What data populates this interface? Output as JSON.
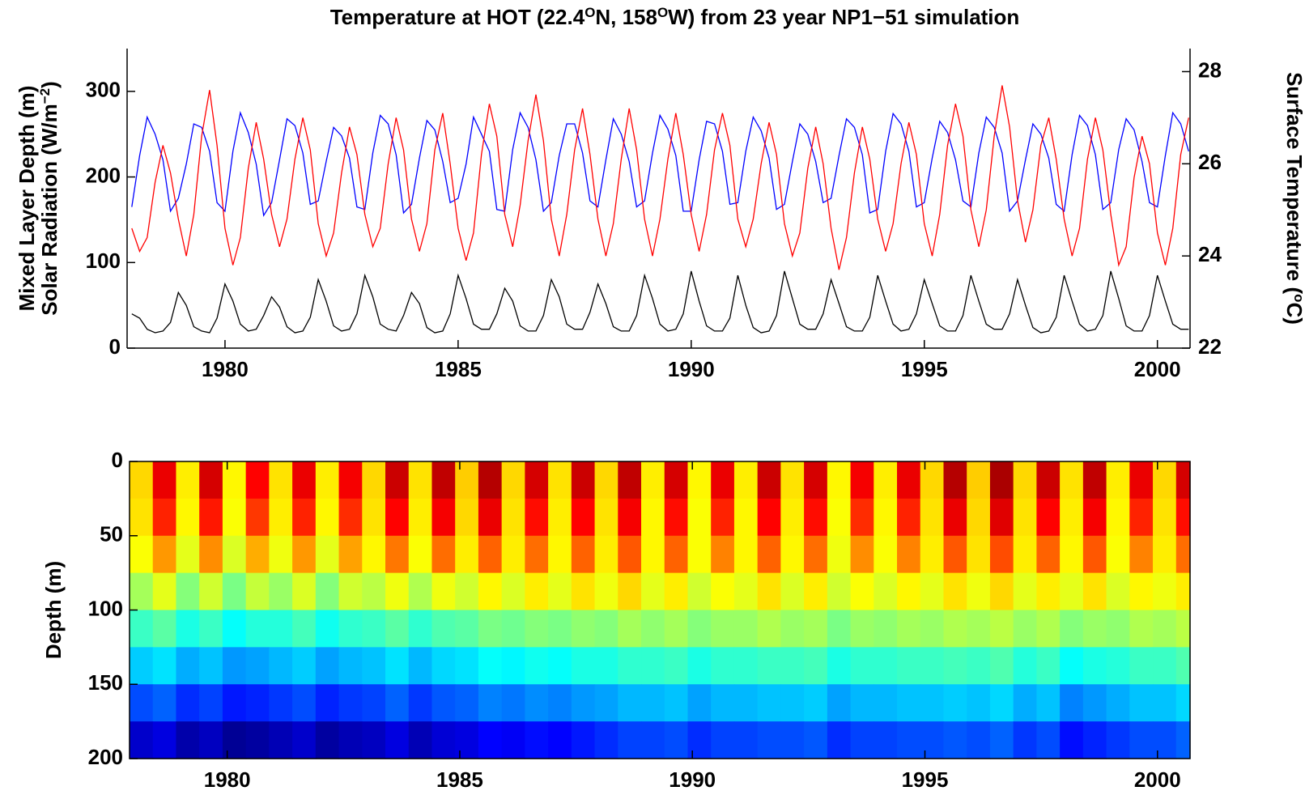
{
  "chart_data": [
    {
      "type": "line",
      "title": [
        "Temperature at HOT (22.4",
        "O",
        "N, 158",
        "O",
        "W) from 23 year NP1−51 simulation"
      ],
      "ylabel": [
        [
          "Mixed Layer Depth (m)"
        ],
        [
          "Solar Radiation (W/m",
          "−2",
          ")"
        ]
      ],
      "y2label": [
        "Surface Temperature (",
        "o",
        "C)"
      ],
      "xlim": [
        1977.9,
        2000.7
      ],
      "xticks": [
        1980,
        1985,
        1990,
        1995,
        2000
      ],
      "ylim": [
        0,
        350
      ],
      "yticks": [
        0,
        100,
        200,
        300
      ],
      "y2lim": [
        22,
        28.5
      ],
      "y2ticks": [
        22,
        24,
        26,
        28
      ],
      "x": [
        1978,
        1978.17,
        1978.33,
        1978.5,
        1978.67,
        1978.83,
        1979,
        1979.17,
        1979.33,
        1979.5,
        1979.67,
        1979.83,
        1980,
        1980.17,
        1980.33,
        1980.5,
        1980.67,
        1980.83,
        1981,
        1981.17,
        1981.33,
        1981.5,
        1981.67,
        1981.83,
        1982,
        1982.17,
        1982.33,
        1982.5,
        1982.67,
        1982.83,
        1983,
        1983.17,
        1983.33,
        1983.5,
        1983.67,
        1983.83,
        1984,
        1984.17,
        1984.33,
        1984.5,
        1984.67,
        1984.83,
        1985,
        1985.17,
        1985.33,
        1985.5,
        1985.67,
        1985.83,
        1986,
        1986.17,
        1986.33,
        1986.5,
        1986.67,
        1986.83,
        1987,
        1987.17,
        1987.33,
        1987.5,
        1987.67,
        1987.83,
        1988,
        1988.17,
        1988.33,
        1988.5,
        1988.67,
        1988.83,
        1989,
        1989.17,
        1989.33,
        1989.5,
        1989.67,
        1989.83,
        1990,
        1990.17,
        1990.33,
        1990.5,
        1990.67,
        1990.83,
        1991,
        1991.17,
        1991.33,
        1991.5,
        1991.67,
        1991.83,
        1992,
        1992.17,
        1992.33,
        1992.5,
        1992.67,
        1992.83,
        1993,
        1993.17,
        1993.33,
        1993.5,
        1993.67,
        1993.83,
        1994,
        1994.17,
        1994.33,
        1994.5,
        1994.67,
        1994.83,
        1995,
        1995.17,
        1995.33,
        1995.5,
        1995.67,
        1995.83,
        1996,
        1996.17,
        1996.33,
        1996.5,
        1996.67,
        1996.83,
        1997,
        1997.17,
        1997.33,
        1997.5,
        1997.67,
        1997.83,
        1998,
        1998.17,
        1998.33,
        1998.5,
        1998.67,
        1998.83,
        1999,
        1999.17,
        1999.33,
        1999.5,
        1999.67,
        1999.83,
        2000,
        2000.17,
        2000.33,
        2000.5,
        2000.67
      ],
      "series": [
        {
          "color": "#0000ff",
          "values": [
            165,
            225,
            270,
            250,
            220,
            160,
            175,
            215,
            262,
            258,
            230,
            170,
            160,
            230,
            275,
            252,
            215,
            155,
            170,
            220,
            268,
            260,
            228,
            168,
            172,
            218,
            258,
            248,
            222,
            165,
            162,
            228,
            272,
            262,
            226,
            158,
            168,
            222,
            266,
            255,
            218,
            170,
            175,
            215,
            270,
            250,
            230,
            162,
            160,
            232,
            275,
            258,
            220,
            160,
            170,
            225,
            262,
            262,
            228,
            172,
            165,
            220,
            268,
            250,
            218,
            165,
            172,
            228,
            272,
            256,
            225,
            160,
            160,
            220,
            265,
            262,
            230,
            168,
            170,
            230,
            270,
            254,
            222,
            162,
            168,
            218,
            262,
            250,
            218,
            170,
            175,
            225,
            268,
            258,
            226,
            158,
            162,
            230,
            274,
            262,
            230,
            165,
            170,
            222,
            265,
            252,
            220,
            172,
            165,
            228,
            270,
            258,
            228,
            160,
            172,
            220,
            262,
            250,
            222,
            168,
            160,
            226,
            272,
            260,
            226,
            162,
            170,
            232,
            268,
            255,
            218,
            170,
            165,
            225,
            275,
            262,
            230
          ]
        },
        {
          "color": "#000000",
          "values": [
            40,
            35,
            22,
            18,
            20,
            30,
            65,
            50,
            25,
            20,
            18,
            35,
            75,
            55,
            28,
            20,
            22,
            38,
            60,
            48,
            25,
            18,
            20,
            36,
            80,
            55,
            26,
            20,
            22,
            40,
            85,
            60,
            28,
            22,
            20,
            38,
            65,
            52,
            24,
            18,
            20,
            40,
            85,
            58,
            28,
            22,
            22,
            40,
            70,
            55,
            26,
            20,
            20,
            38,
            80,
            60,
            28,
            22,
            22,
            42,
            75,
            52,
            25,
            20,
            20,
            38,
            85,
            58,
            28,
            20,
            22,
            40,
            90,
            55,
            26,
            20,
            20,
            35,
            85,
            50,
            24,
            18,
            20,
            38,
            90,
            58,
            28,
            22,
            22,
            40,
            80,
            52,
            25,
            20,
            20,
            36,
            85,
            55,
            28,
            20,
            22,
            40,
            80,
            52,
            26,
            20,
            20,
            38,
            85,
            55,
            28,
            22,
            22,
            40,
            80,
            50,
            24,
            18,
            20,
            36,
            85,
            55,
            28,
            20,
            22,
            38,
            90,
            58,
            26,
            20,
            20,
            38,
            85,
            55,
            28,
            22,
            22
          ]
        },
        {
          "color": "#ff0000",
          "axis": "y2",
          "values": [
            24.6,
            24.1,
            24.4,
            25.6,
            26.4,
            25.8,
            24.8,
            24.0,
            24.9,
            26.6,
            27.6,
            26.4,
            24.6,
            23.8,
            24.4,
            25.9,
            26.9,
            26.1,
            24.9,
            24.2,
            24.8,
            26.1,
            27.0,
            26.3,
            24.7,
            24.0,
            24.5,
            25.8,
            26.8,
            26.2,
            24.9,
            24.2,
            24.6,
            26.0,
            27.0,
            26.3,
            24.8,
            24.1,
            24.7,
            26.3,
            27.1,
            26.0,
            24.6,
            23.9,
            24.5,
            26.2,
            27.3,
            26.6,
            24.9,
            24.2,
            25.1,
            26.5,
            27.5,
            26.5,
            24.8,
            24.0,
            24.9,
            26.3,
            27.2,
            26.2,
            24.8,
            24.0,
            24.7,
            26.1,
            27.2,
            26.3,
            24.8,
            24.0,
            24.8,
            26.1,
            27.1,
            26.2,
            24.9,
            24.1,
            24.9,
            26.3,
            27.1,
            26.4,
            24.8,
            24.2,
            24.8,
            26.0,
            26.9,
            26.2,
            24.7,
            24.0,
            24.5,
            25.9,
            26.8,
            26.0,
            24.6,
            23.7,
            24.4,
            25.8,
            26.8,
            26.1,
            24.8,
            24.1,
            24.7,
            26.0,
            26.9,
            26.2,
            24.7,
            24.0,
            24.9,
            26.4,
            27.3,
            26.6,
            25.0,
            24.2,
            25.0,
            26.6,
            27.7,
            26.8,
            25.2,
            24.3,
            25.0,
            26.4,
            27.0,
            26.1,
            24.8,
            24.0,
            24.6,
            26.1,
            27.0,
            26.3,
            24.9,
            23.8,
            24.2,
            25.7,
            26.6,
            26.0,
            24.5,
            23.8,
            24.6,
            26.2,
            27.0
          ]
        }
      ]
    },
    {
      "type": "contour",
      "ylabel": "Depth (m)",
      "xlim": [
        1977.9,
        2000.7
      ],
      "xticks": [
        1980,
        1985,
        1990,
        1995,
        2000
      ],
      "ylim": [
        0,
        200
      ],
      "yticks": [
        0,
        50,
        100,
        150,
        200
      ],
      "yreverse": true,
      "colormap": "jet",
      "zlim": [
        18.5,
        28
      ],
      "x_edges": [
        1977.9,
        1978.4,
        1978.9,
        1979.4,
        1979.9,
        1980.4,
        1980.9,
        1981.4,
        1981.9,
        1982.4,
        1982.9,
        1983.4,
        1983.9,
        1984.4,
        1984.9,
        1985.4,
        1985.9,
        1986.4,
        1986.9,
        1987.4,
        1987.9,
        1988.4,
        1988.9,
        1989.4,
        1989.9,
        1990.4,
        1990.9,
        1991.4,
        1991.9,
        1992.4,
        1992.9,
        1993.4,
        1993.9,
        1994.4,
        1994.9,
        1995.4,
        1995.9,
        1996.4,
        1996.9,
        1997.4,
        1997.9,
        1998.4,
        1998.9,
        1999.4,
        1999.9,
        2000.4,
        2000.7
      ],
      "y_edges": [
        0,
        25,
        50,
        75,
        100,
        125,
        150,
        175,
        200
      ],
      "z": [
        [
          24.8,
          27.0,
          24.6,
          27.2,
          24.5,
          26.8,
          24.7,
          27.0,
          24.6,
          26.9,
          24.8,
          27.3,
          24.7,
          27.4,
          24.9,
          27.5,
          24.8,
          27.2,
          24.7,
          27.3,
          24.8,
          27.4,
          24.6,
          27.2,
          24.5,
          27.0,
          24.6,
          27.3,
          24.7,
          27.2,
          24.5,
          26.9,
          24.6,
          27.0,
          24.8,
          27.5,
          24.9,
          27.6,
          24.8,
          27.3,
          24.7,
          27.4,
          24.6,
          27.0,
          24.8,
          27.2
        ],
        [
          24.7,
          26.5,
          24.5,
          26.6,
          24.4,
          26.3,
          24.6,
          26.5,
          24.5,
          26.4,
          24.7,
          26.8,
          24.6,
          26.9,
          24.8,
          27.0,
          24.7,
          26.7,
          24.6,
          26.8,
          24.7,
          26.9,
          24.5,
          26.7,
          24.4,
          26.5,
          24.5,
          26.8,
          24.6,
          26.7,
          24.4,
          26.4,
          24.5,
          26.5,
          24.7,
          27.0,
          24.8,
          27.1,
          24.7,
          26.8,
          24.6,
          26.9,
          24.5,
          26.5,
          24.7,
          26.7
        ],
        [
          24.4,
          25.4,
          24.2,
          25.5,
          24.1,
          25.2,
          24.3,
          25.4,
          24.2,
          25.3,
          24.5,
          25.7,
          24.4,
          25.8,
          24.6,
          25.9,
          24.6,
          25.8,
          24.5,
          25.9,
          24.6,
          26.0,
          24.5,
          25.9,
          24.4,
          25.6,
          24.5,
          25.9,
          24.5,
          25.8,
          24.3,
          25.5,
          24.4,
          25.6,
          24.6,
          26.0,
          24.7,
          26.1,
          24.6,
          25.9,
          24.5,
          26.0,
          24.4,
          25.6,
          24.6,
          25.8
        ],
        [
          23.6,
          24.2,
          23.3,
          24.0,
          23.2,
          23.9,
          23.5,
          24.1,
          23.3,
          24.0,
          23.8,
          24.3,
          23.7,
          24.3,
          24.0,
          24.5,
          24.1,
          24.6,
          24.2,
          24.7,
          24.3,
          24.8,
          24.2,
          24.6,
          24.0,
          24.4,
          24.2,
          24.7,
          24.1,
          24.6,
          24.0,
          24.4,
          24.1,
          24.5,
          24.2,
          24.7,
          24.3,
          24.8,
          24.2,
          24.6,
          24.2,
          24.7,
          24.1,
          24.5,
          24.3,
          24.6
        ],
        [
          22.6,
          22.9,
          22.3,
          22.6,
          22.1,
          22.4,
          22.4,
          22.7,
          22.2,
          22.5,
          22.6,
          22.9,
          22.5,
          22.8,
          22.9,
          23.2,
          23.1,
          23.3,
          23.2,
          23.4,
          23.3,
          23.6,
          23.4,
          23.6,
          23.3,
          23.5,
          23.5,
          23.7,
          23.5,
          23.6,
          23.2,
          23.5,
          23.4,
          23.6,
          23.5,
          23.7,
          23.6,
          23.8,
          23.5,
          23.7,
          23.3,
          23.5,
          23.4,
          23.7,
          23.6,
          23.8
        ],
        [
          21.6,
          21.8,
          21.3,
          21.5,
          21.1,
          21.2,
          21.4,
          21.6,
          21.2,
          21.4,
          21.5,
          21.8,
          21.4,
          21.7,
          21.8,
          22.1,
          22.0,
          22.2,
          22.1,
          22.3,
          22.3,
          22.5,
          22.5,
          22.6,
          22.3,
          22.5,
          22.5,
          22.6,
          22.6,
          22.7,
          22.3,
          22.5,
          22.5,
          22.6,
          22.6,
          22.7,
          22.6,
          22.8,
          22.4,
          22.6,
          22.1,
          22.3,
          22.4,
          22.6,
          22.6,
          22.8
        ],
        [
          20.4,
          20.6,
          20.1,
          20.3,
          19.9,
          20.0,
          20.2,
          20.4,
          20.0,
          20.2,
          20.3,
          20.6,
          20.2,
          20.5,
          20.6,
          20.9,
          20.8,
          21.0,
          20.9,
          21.1,
          21.2,
          21.4,
          21.4,
          21.5,
          21.2,
          21.4,
          21.4,
          21.5,
          21.5,
          21.6,
          21.2,
          21.4,
          21.4,
          21.5,
          21.5,
          21.6,
          21.5,
          21.7,
          21.3,
          21.5,
          20.9,
          21.1,
          21.3,
          21.5,
          21.5,
          21.7
        ],
        [
          19.2,
          19.4,
          18.9,
          19.1,
          18.7,
          18.8,
          19.0,
          19.2,
          18.8,
          19.0,
          19.1,
          19.4,
          19.0,
          19.3,
          19.4,
          19.7,
          19.6,
          19.8,
          19.7,
          19.9,
          20.1,
          20.3,
          20.3,
          20.4,
          20.1,
          20.3,
          20.3,
          20.4,
          20.4,
          20.5,
          20.1,
          20.3,
          20.3,
          20.4,
          20.4,
          20.5,
          20.4,
          20.6,
          20.2,
          20.4,
          19.8,
          20.0,
          20.2,
          20.4,
          20.4,
          20.6
        ]
      ]
    }
  ]
}
